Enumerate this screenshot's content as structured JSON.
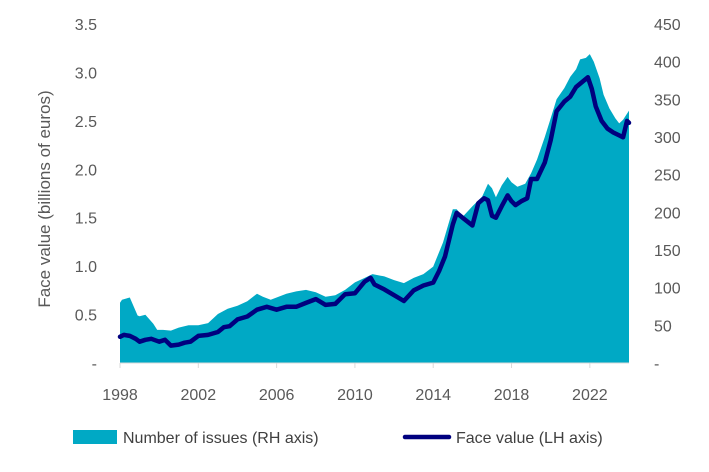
{
  "chart_data": {
    "type": "area",
    "ylabel_left": "Face value (billions of euros)",
    "ylabel_right": "",
    "x_ticks": [
      "1998",
      "2002",
      "2006",
      "2010",
      "2014",
      "2018",
      "2022"
    ],
    "y_left_ticks": [
      "-",
      "0.5",
      "1.0",
      "1.5",
      "2.0",
      "2.5",
      "3.0",
      "3.5"
    ],
    "y_right_ticks": [
      "-",
      "50",
      "100",
      "150",
      "200",
      "250",
      "300",
      "350",
      "400",
      "450"
    ],
    "y_left_lim": [
      0,
      3.5
    ],
    "y_right_lim": [
      0,
      450
    ],
    "x_lim": [
      1998,
      2024
    ],
    "grid": false,
    "legend_position": "bottom",
    "colors": {
      "area": "#00A9C5",
      "line": "#00007F"
    },
    "series": [
      {
        "name": "Number of issues (RH axis)",
        "type": "area",
        "axis": "right",
        "x": [
          1998.0,
          1998.1,
          1998.5,
          1998.9,
          1999.0,
          1999.3,
          1999.7,
          1999.9,
          2000.2,
          2000.6,
          2001.0,
          2001.5,
          2002.0,
          2002.5,
          2003.0,
          2003.5,
          2004.0,
          2004.5,
          2005.0,
          2005.3,
          2005.7,
          2006.0,
          2006.5,
          2007.0,
          2007.5,
          2008.0,
          2008.5,
          2009.0,
          2009.5,
          2010.0,
          2010.5,
          2010.9,
          2011.5,
          2012.0,
          2012.5,
          2013.0,
          2013.5,
          2014.0,
          2014.5,
          2015.0,
          2015.2,
          2015.5,
          2016.0,
          2016.5,
          2016.8,
          2017.0,
          2017.2,
          2017.5,
          2017.8,
          2018.0,
          2018.3,
          2018.7,
          2019.0,
          2019.3,
          2019.7,
          2020.0,
          2020.3,
          2020.7,
          2021.0,
          2021.3,
          2021.5,
          2021.8,
          2022.0,
          2022.2,
          2022.5,
          2022.7,
          2023.0,
          2023.3,
          2023.5,
          2023.7,
          2024.0
        ],
        "y": [
          80,
          84,
          87,
          63,
          62,
          64,
          52,
          44,
          44,
          43,
          47,
          50,
          50,
          53,
          65,
          72,
          76,
          82,
          92,
          88,
          84,
          87,
          92,
          95,
          97,
          94,
          88,
          90,
          97,
          107,
          113,
          118,
          115,
          110,
          106,
          113,
          118,
          128,
          160,
          204,
          204,
          194,
          208,
          221,
          238,
          232,
          220,
          236,
          247,
          240,
          234,
          238,
          252,
          270,
          300,
          325,
          350,
          365,
          380,
          390,
          403,
          405,
          410,
          400,
          378,
          356,
          338,
          325,
          318,
          323,
          335
        ]
      },
      {
        "name": "Face value (LH axis)",
        "type": "line",
        "axis": "left",
        "x": [
          1998.0,
          1998.2,
          1998.5,
          1998.8,
          1999.0,
          1999.3,
          1999.6,
          2000.0,
          2000.3,
          2000.6,
          2001.0,
          2001.3,
          2001.6,
          2002.0,
          2002.5,
          2003.0,
          2003.3,
          2003.6,
          2004.0,
          2004.5,
          2005.0,
          2005.5,
          2006.0,
          2006.5,
          2007.0,
          2007.5,
          2008.0,
          2008.5,
          2009.0,
          2009.5,
          2010.0,
          2010.5,
          2010.8,
          2011.0,
          2011.5,
          2012.0,
          2012.5,
          2013.0,
          2013.5,
          2014.0,
          2014.3,
          2014.6,
          2015.0,
          2015.2,
          2015.5,
          2016.0,
          2016.3,
          2016.6,
          2016.8,
          2017.0,
          2017.2,
          2017.5,
          2017.8,
          2018.0,
          2018.2,
          2018.5,
          2018.8,
          2019.0,
          2019.3,
          2019.7,
          2020.0,
          2020.3,
          2020.7,
          2021.0,
          2021.3,
          2021.6,
          2021.9,
          2022.1,
          2022.3,
          2022.6,
          2022.9,
          2023.2,
          2023.5,
          2023.7,
          2023.9,
          2024.0
        ],
        "y": [
          0.27,
          0.29,
          0.28,
          0.25,
          0.22,
          0.24,
          0.25,
          0.22,
          0.24,
          0.18,
          0.19,
          0.21,
          0.22,
          0.28,
          0.29,
          0.32,
          0.37,
          0.38,
          0.45,
          0.48,
          0.55,
          0.58,
          0.55,
          0.58,
          0.58,
          0.62,
          0.66,
          0.6,
          0.61,
          0.71,
          0.72,
          0.84,
          0.88,
          0.81,
          0.76,
          0.7,
          0.64,
          0.75,
          0.8,
          0.83,
          0.95,
          1.1,
          1.43,
          1.55,
          1.5,
          1.42,
          1.65,
          1.7,
          1.68,
          1.52,
          1.5,
          1.62,
          1.73,
          1.67,
          1.63,
          1.67,
          1.7,
          1.9,
          1.9,
          2.07,
          2.3,
          2.6,
          2.7,
          2.75,
          2.85,
          2.9,
          2.95,
          2.83,
          2.65,
          2.5,
          2.42,
          2.38,
          2.35,
          2.33,
          2.5,
          2.48
        ]
      }
    ]
  }
}
